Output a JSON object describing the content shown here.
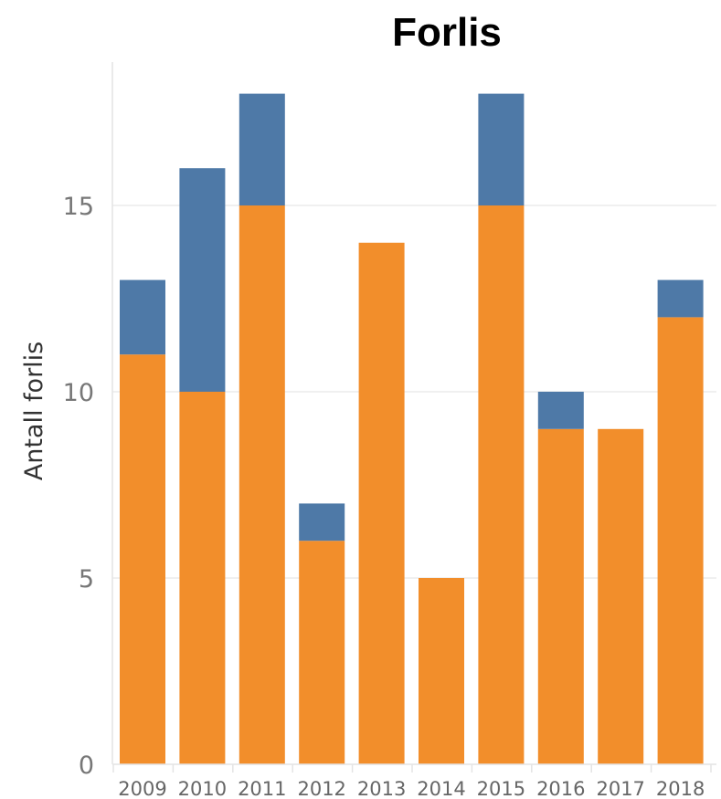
{
  "chart_data": {
    "type": "bar",
    "stacked": true,
    "title": "Forlis",
    "xlabel": "",
    "ylabel": "Antall forlis",
    "categories": [
      "2009",
      "2010",
      "2011",
      "2012",
      "2013",
      "2014",
      "2015",
      "2016",
      "2017",
      "2018"
    ],
    "series": [
      {
        "color": "#f28e2b",
        "values": [
          11,
          10,
          15,
          6,
          14,
          5,
          15,
          9,
          9,
          12
        ]
      },
      {
        "color": "#4e79a7",
        "values": [
          2,
          6,
          3,
          1,
          0,
          0,
          3,
          1,
          0,
          1
        ]
      }
    ],
    "ylim": [
      0,
      19.5
    ],
    "yticks": [
      0,
      5,
      10,
      15
    ],
    "grid": true,
    "legend": "none"
  }
}
